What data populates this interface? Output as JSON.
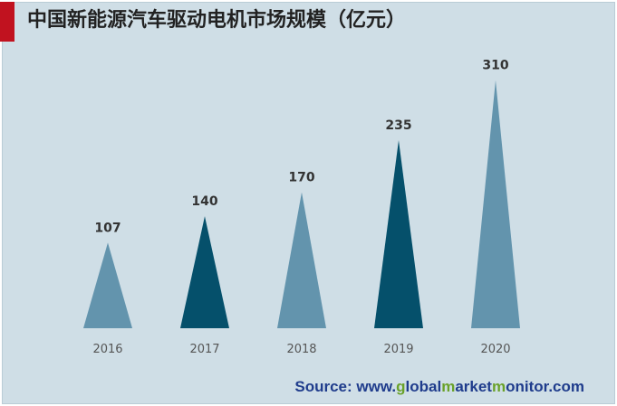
{
  "title": "中国新能源汽车驱动电机市场规模（亿元）",
  "source": {
    "prefix": "Source: www.",
    "parts": [
      "g",
      "lobal",
      "m",
      "arket",
      "m",
      "onitor",
      ".com"
    ]
  },
  "colors": {
    "light": "#6394ad",
    "dark": "#05506b",
    "background": "#cfdee6",
    "accent": "#c1121f",
    "source_highlight": "#6aa22a"
  },
  "chart_data": {
    "type": "bar",
    "shape": "triangle",
    "categories": [
      "2016",
      "2017",
      "2018",
      "2019",
      "2020"
    ],
    "values": [
      107,
      140,
      170,
      235,
      310
    ],
    "bar_colors": [
      "light",
      "dark",
      "light",
      "dark",
      "light"
    ],
    "title": "中国新能源汽车驱动电机市场规模（亿元）",
    "xlabel": "",
    "ylabel": "",
    "grid": false,
    "legend": "none"
  }
}
